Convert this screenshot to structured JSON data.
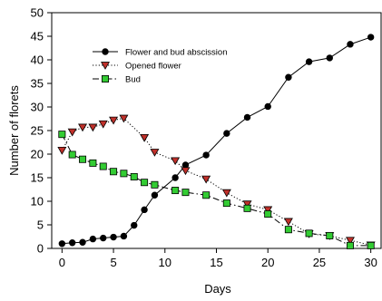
{
  "chart_data": {
    "type": "line",
    "title": "",
    "xlabel": "Days",
    "ylabel": "Number of florets",
    "xlim": [
      -1,
      31
    ],
    "ylim": [
      0,
      50
    ],
    "xticks": [
      0,
      5,
      10,
      15,
      20,
      25,
      30
    ],
    "yticks": [
      0,
      5,
      10,
      15,
      20,
      25,
      30,
      35,
      40,
      45,
      50
    ],
    "grid": false,
    "legend_position": "top-center",
    "series": [
      {
        "name": "Flower and bud abscission",
        "marker": "circle",
        "line_style": "solid",
        "marker_color": "#000000",
        "x": [
          0,
          1,
          2,
          3,
          4,
          5,
          6,
          7,
          8,
          9,
          11,
          12,
          14,
          16,
          18,
          20,
          22,
          24,
          26,
          28,
          30
        ],
        "y": [
          1.0,
          1.2,
          1.3,
          2.0,
          2.2,
          2.4,
          2.6,
          4.9,
          8.2,
          11.3,
          15.0,
          17.7,
          19.8,
          24.4,
          27.8,
          30.1,
          36.3,
          39.6,
          40.4,
          43.3,
          44.8
        ]
      },
      {
        "name": "Opened flower",
        "marker": "triangle-down",
        "line_style": "dotted",
        "marker_color": "#c0302a",
        "x": [
          0,
          1,
          2,
          3,
          4,
          5,
          6,
          8,
          9,
          11,
          12,
          14,
          16,
          18,
          20,
          22,
          24,
          26,
          28,
          30
        ],
        "y": [
          20.8,
          24.7,
          25.7,
          25.7,
          26.4,
          27.2,
          27.6,
          23.5,
          20.4,
          18.6,
          16.5,
          14.7,
          11.8,
          9.4,
          8.2,
          5.7,
          3.1,
          2.7,
          1.7,
          0.7
        ]
      },
      {
        "name": "Bud",
        "marker": "square",
        "line_style": "dashed",
        "marker_color": "#33cc33",
        "x": [
          0,
          1,
          2,
          3,
          4,
          5,
          6,
          7,
          8,
          9,
          11,
          12,
          14,
          16,
          18,
          20,
          22,
          24,
          26,
          28,
          30
        ],
        "y": [
          24.2,
          19.9,
          18.9,
          18.1,
          17.4,
          16.3,
          15.9,
          15.2,
          14.0,
          13.5,
          12.3,
          11.9,
          11.3,
          9.6,
          8.5,
          7.3,
          4.0,
          3.2,
          2.7,
          0.6,
          0.6
        ]
      }
    ]
  }
}
